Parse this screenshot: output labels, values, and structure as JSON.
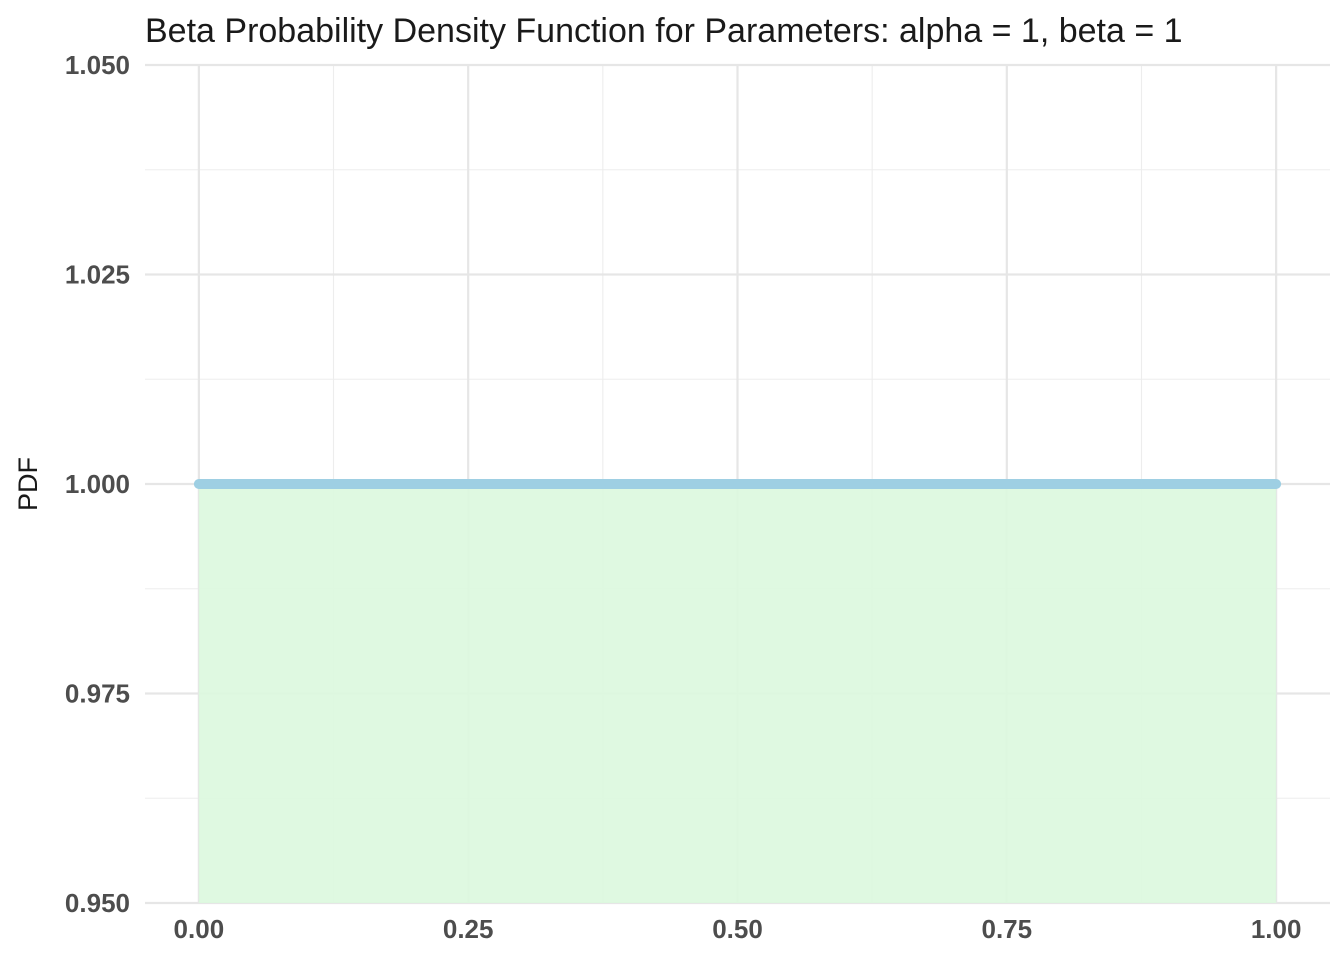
{
  "chart_data": {
    "type": "area",
    "title": "Beta Probability Density Function for Parameters: alpha = 1, beta = 1",
    "xlabel": "",
    "ylabel": "PDF",
    "xlim": [
      -0.05,
      1.05
    ],
    "ylim": [
      0.95,
      1.05
    ],
    "x_ticks": [
      0.0,
      0.25,
      0.5,
      0.75,
      1.0
    ],
    "x_tick_labels": [
      "0.00",
      "0.25",
      "0.50",
      "0.75",
      "1.00"
    ],
    "y_ticks": [
      0.95,
      0.975,
      1.0,
      1.025,
      1.05
    ],
    "y_tick_labels": [
      "0.950",
      "0.975",
      "1.000",
      "1.025",
      "1.050"
    ],
    "grid": true,
    "series": [
      {
        "x": [
          0.0,
          0.25,
          0.5,
          0.75,
          1.0
        ],
        "y": [
          1.0,
          1.0,
          1.0,
          1.0,
          1.0
        ],
        "line_color": "#9ecfe3",
        "fill_color": "#dcf9de"
      }
    ]
  }
}
